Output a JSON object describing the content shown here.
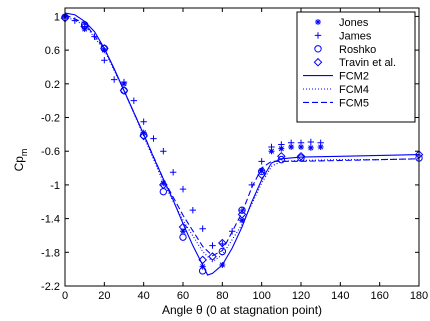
{
  "chart_data": {
    "type": "scatter",
    "title": "",
    "xlabel": "Angle θ (0 at stagnation point)",
    "ylabel_main": "Cp",
    "ylabel_sub": "m",
    "xlim": [
      0,
      180
    ],
    "ylim": [
      -2.2,
      1.1
    ],
    "xticks": [
      0,
      20,
      40,
      60,
      80,
      100,
      120,
      140,
      160,
      180
    ],
    "yticks": [
      1,
      0.6,
      0.2,
      -0.2,
      -0.6,
      -1,
      -1.4,
      -1.8,
      -2.2
    ],
    "xtick_labels": [
      "0",
      "20",
      "40",
      "60",
      "80",
      "100",
      "120",
      "140",
      "160",
      "180"
    ],
    "ytick_labels": [
      "1",
      "0.6",
      "0.2",
      "-0.2",
      "-0.6",
      "-1",
      "-1.4",
      "-1.8",
      "-2.2"
    ],
    "legend_position": "top-right",
    "color": "#0000ff",
    "series": [
      {
        "name": "Jones",
        "style": "star",
        "x": [
          0,
          10,
          20,
          30,
          40,
          50,
          60,
          70,
          80,
          90,
          100,
          105,
          110,
          115,
          120,
          125,
          130
        ],
        "y": [
          1.0,
          0.85,
          0.6,
          0.2,
          -0.38,
          -0.98,
          -1.55,
          -1.97,
          -1.95,
          -1.42,
          -0.83,
          -0.6,
          -0.57,
          -0.55,
          -0.55,
          -0.56,
          -0.55
        ]
      },
      {
        "name": "James",
        "style": "plus",
        "x": [
          0,
          5,
          10,
          15,
          20,
          25,
          30,
          35,
          40,
          45,
          50,
          55,
          60,
          65,
          70,
          75,
          80,
          85,
          90,
          95,
          100,
          105,
          110,
          115,
          120,
          125,
          130
        ],
        "y": [
          0.98,
          0.95,
          0.88,
          0.76,
          0.48,
          0.25,
          0.22,
          0.0,
          -0.25,
          -0.45,
          -0.6,
          -0.85,
          -1.05,
          -1.3,
          -1.52,
          -1.72,
          -1.7,
          -1.55,
          -1.3,
          -1.0,
          -0.72,
          -0.55,
          -0.52,
          -0.5,
          -0.5,
          -0.49,
          -0.5
        ]
      },
      {
        "name": "Roshko",
        "style": "circle",
        "x": [
          0,
          10,
          20,
          30,
          40,
          50,
          60,
          70,
          80,
          90,
          100,
          110,
          120,
          180
        ],
        "y": [
          0.99,
          0.9,
          0.62,
          0.12,
          -0.41,
          -1.08,
          -1.62,
          -2.02,
          -1.79,
          -1.3,
          -0.84,
          -0.7,
          -0.68,
          -0.68
        ]
      },
      {
        "name": "Travin et al.",
        "style": "diamond",
        "x": [
          0,
          10,
          20,
          30,
          40,
          50,
          60,
          70,
          75,
          80,
          90,
          100,
          110,
          120,
          180
        ],
        "y": [
          0.98,
          0.88,
          0.62,
          0.12,
          -0.42,
          -1.0,
          -1.5,
          -1.89,
          -1.85,
          -1.69,
          -1.35,
          -0.88,
          -0.66,
          -0.66,
          -0.64
        ]
      },
      {
        "name": "FCM2",
        "style": "solid",
        "x": [
          0,
          5,
          10,
          15,
          20,
          25,
          30,
          35,
          40,
          45,
          50,
          55,
          60,
          65,
          70,
          72.5,
          75,
          80,
          85,
          90,
          95,
          100,
          105,
          110,
          120,
          140,
          160,
          180
        ],
        "y": [
          1.04,
          1.02,
          0.94,
          0.82,
          0.62,
          0.38,
          0.12,
          -0.14,
          -0.4,
          -0.67,
          -0.93,
          -1.18,
          -1.46,
          -1.72,
          -1.95,
          -2.07,
          -2.05,
          -1.95,
          -1.75,
          -1.5,
          -1.2,
          -0.94,
          -0.74,
          -0.69,
          -0.67,
          -0.66,
          -0.65,
          -0.64
        ]
      },
      {
        "name": "FCM4",
        "style": "dotted",
        "x": [
          0,
          10,
          20,
          30,
          40,
          50,
          60,
          70,
          75,
          80,
          90,
          100,
          105,
          110,
          120,
          140,
          160,
          180
        ],
        "y": [
          1.0,
          0.9,
          0.6,
          0.12,
          -0.42,
          -0.97,
          -1.42,
          -1.79,
          -1.91,
          -1.83,
          -1.47,
          -0.98,
          -0.78,
          -0.72,
          -0.71,
          -0.7,
          -0.7,
          -0.69
        ]
      },
      {
        "name": "FCM5",
        "style": "dashed",
        "x": [
          0,
          10,
          20,
          30,
          40,
          50,
          60,
          70,
          75,
          80,
          90,
          95,
          100,
          105,
          110,
          120,
          140,
          160,
          180
        ],
        "y": [
          1.02,
          0.92,
          0.62,
          0.12,
          -0.4,
          -0.93,
          -1.36,
          -1.73,
          -1.84,
          -1.78,
          -1.33,
          -1.03,
          -0.8,
          -0.72,
          -0.72,
          -0.72,
          -0.71,
          -0.7,
          -0.69
        ]
      }
    ]
  }
}
